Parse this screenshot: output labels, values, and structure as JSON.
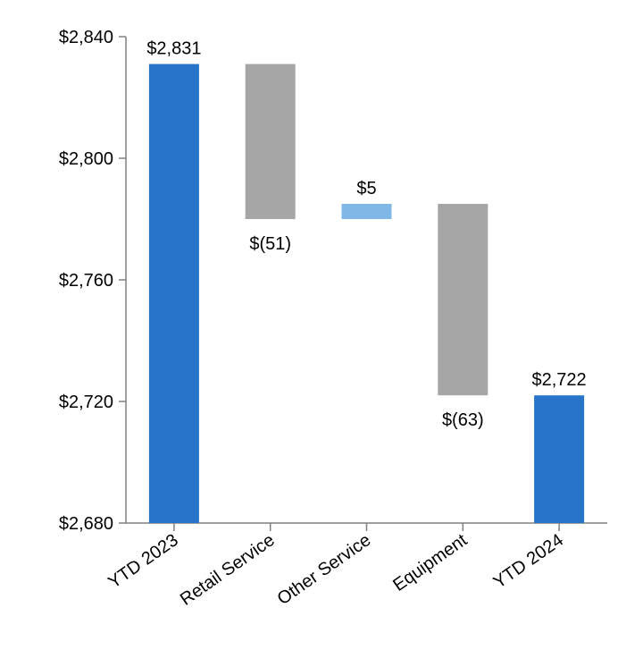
{
  "chart_data": {
    "type": "bar",
    "subtype": "waterfall",
    "categories": [
      "YTD 2023",
      "Retail Service",
      "Other Service",
      "Equipment",
      "YTD 2024"
    ],
    "bars": [
      {
        "category": "YTD 2023",
        "kind": "total",
        "start": 2680,
        "end": 2831,
        "label": "$2,831",
        "label_position": "above"
      },
      {
        "category": "Retail Service",
        "kind": "decrease",
        "start": 2831,
        "end": 2780,
        "label": "$(51)",
        "label_position": "below"
      },
      {
        "category": "Other Service",
        "kind": "increase",
        "start": 2780,
        "end": 2785,
        "label": "$5",
        "label_position": "above"
      },
      {
        "category": "Equipment",
        "kind": "decrease",
        "start": 2785,
        "end": 2722,
        "label": "$(63)",
        "label_position": "below"
      },
      {
        "category": "YTD 2024",
        "kind": "total",
        "start": 2680,
        "end": 2722,
        "label": "$2,722",
        "label_position": "above"
      }
    ],
    "yticks": [
      2680,
      2720,
      2760,
      2800,
      2840
    ],
    "ytick_labels": [
      "$2,680",
      "$2,720",
      "$2,760",
      "$2,800",
      "$2,840"
    ],
    "ylim": [
      2680,
      2840
    ],
    "grid": false,
    "legend": "none",
    "colors": {
      "total": "#2774c8",
      "decrease": "#a6a6a6",
      "increase": "#7fb8e6",
      "axis": "#808080"
    }
  }
}
